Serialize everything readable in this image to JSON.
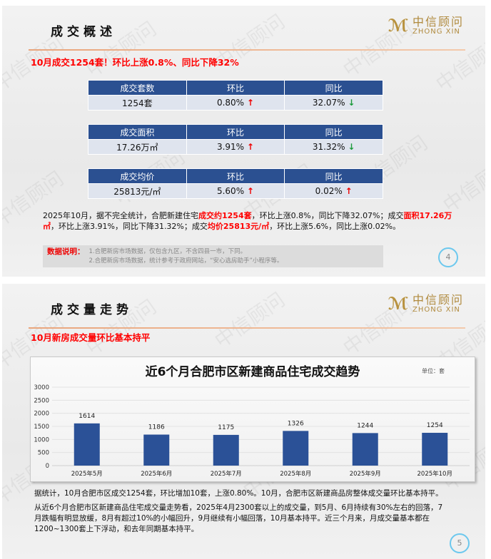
{
  "slide1": {
    "title": "成交概述",
    "logo": {
      "mark": "中信",
      "cn": "中信顾问",
      "en": "ZHONG XIN"
    },
    "watermark": "中信顾问",
    "headline": "10月成交1254套！环比上涨0.8%、同比下降32%",
    "tables": [
      {
        "headers": [
          "成交套数",
          "环比",
          "同比"
        ],
        "values": [
          "1254套",
          "0.80%",
          "32.07%"
        ],
        "trends": [
          "up",
          "down"
        ]
      },
      {
        "headers": [
          "成交面积",
          "环比",
          "同比"
        ],
        "values": [
          "17.26万㎡",
          "3.91%",
          "31.32%"
        ],
        "trends": [
          "up",
          "down"
        ]
      },
      {
        "headers": [
          "成交均价",
          "环比",
          "同比"
        ],
        "values": [
          "25813元/㎡",
          "5.60%",
          "0.02%"
        ],
        "trends": [
          "up",
          "up"
        ]
      }
    ],
    "arrow_up": "↑",
    "arrow_down": "↓",
    "summary": {
      "p1": "2025年10月，据不完全统计，合肥新建住宅",
      "h1": "成交约1254套",
      "p2": "，环比上涨0.8%，同比下降32.07%；成交",
      "h2": "面积17.26万㎡",
      "p3": "，环比上涨3.91%，同比下降31.32%；成交",
      "h3": "均价25813元/㎡",
      "p4": "，环比上涨5.6%，同比上涨0.02%。"
    },
    "note": {
      "label": "数据说明：",
      "lines": [
        "1.合肥新房市场数据，仅包含九区，不含四县一市，下同。",
        "2.合肥新房市场数据，统计参考于政府网站，“安心选房助手”小程序等。"
      ]
    },
    "page": "4"
  },
  "slide2": {
    "title": "成交量走势",
    "headline": "10月新房成交量环比基本持平",
    "paragraphs": [
      "据统计，10月合肥市区成交1254套，环比增加10套，上涨0.80%。10月，合肥市区新建商品房整体成交量环比基本持平。",
      "从近6个月合肥市区新建商品住宅成交量走势看，2025年4月2300套以上的成交量，到5月、6月持续有30%左右的回落，7月跌幅有明显放缓，8月有超过10%的小幅回升，9月继续有小幅回落，10月基本持平。近三个月来，月成交量基本都在1200~1300套上下浮动，和去年同期基本持平。"
    ],
    "page": "5"
  },
  "chart_data": {
    "type": "bar",
    "title": "近6个月合肥市区新建商品住宅成交趋势",
    "unit": "单位：套",
    "categories": [
      "2025年5月",
      "2025年6月",
      "2025年7月",
      "2025年8月",
      "2025年9月",
      "2025年10月"
    ],
    "values": [
      1614,
      1186,
      1175,
      1326,
      1244,
      1254
    ],
    "yticks": [
      "0",
      "500",
      "1000",
      "1500",
      "2000",
      "2500",
      "3000"
    ],
    "ylim": [
      0,
      3000
    ],
    "grid": true,
    "bar_color": "#2b5197"
  }
}
